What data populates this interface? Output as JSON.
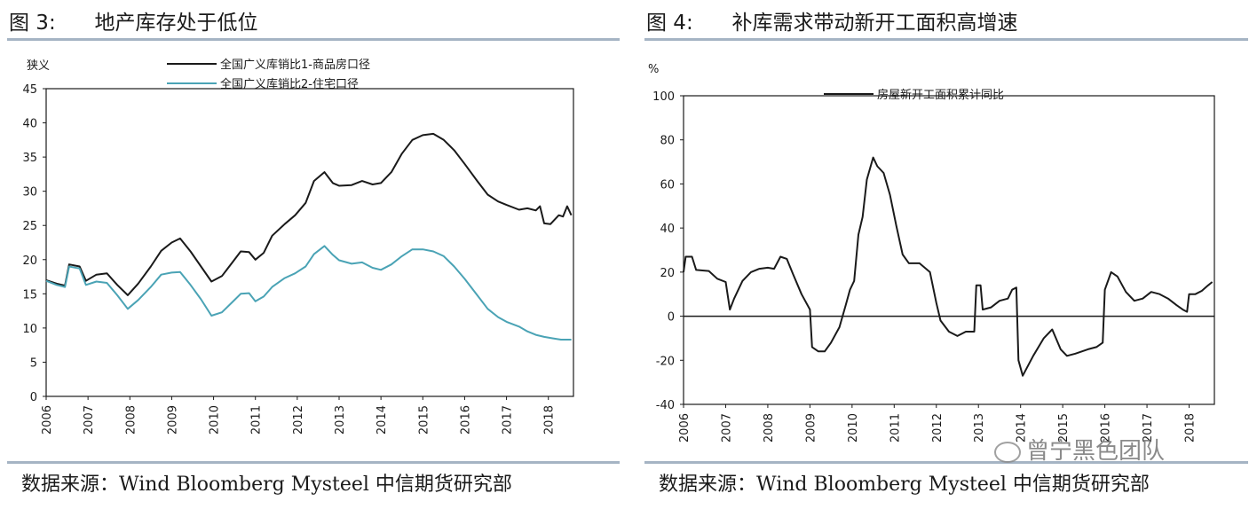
{
  "left": {
    "title": "图 3:      地产库存处于低位",
    "source": "数据来源：Wind Bloomberg Mysteel 中信期货研究部",
    "chart_data": {
      "type": "line",
      "ylabel": "狭义",
      "ylim": [
        0,
        45
      ],
      "yticks": [
        0,
        5,
        10,
        15,
        20,
        25,
        30,
        35,
        40,
        45
      ],
      "xlim": [
        2006,
        2018.6
      ],
      "xticks": [
        "2006",
        "2007",
        "2008",
        "2009",
        "2010",
        "2011",
        "2012",
        "2013",
        "2014",
        "2015",
        "2016",
        "2017",
        "2018"
      ],
      "legend_position": "top",
      "series": [
        {
          "name": "全国广义库销比1-商品房口径",
          "color": "#1a1a1a",
          "points": [
            [
              2006.0,
              17.0
            ],
            [
              2006.25,
              16.5
            ],
            [
              2006.45,
              16.2
            ],
            [
              2006.55,
              19.3
            ],
            [
              2006.8,
              19.0
            ],
            [
              2006.95,
              16.9
            ],
            [
              2007.2,
              17.8
            ],
            [
              2007.45,
              18.0
            ],
            [
              2007.7,
              16.3
            ],
            [
              2007.95,
              14.8
            ],
            [
              2008.2,
              16.5
            ],
            [
              2008.5,
              19.0
            ],
            [
              2008.75,
              21.3
            ],
            [
              2009.0,
              22.5
            ],
            [
              2009.2,
              23.1
            ],
            [
              2009.45,
              21.2
            ],
            [
              2009.7,
              19.0
            ],
            [
              2009.95,
              16.8
            ],
            [
              2010.2,
              17.6
            ],
            [
              2010.45,
              19.6
            ],
            [
              2010.65,
              21.2
            ],
            [
              2010.85,
              21.1
            ],
            [
              2011.0,
              20.0
            ],
            [
              2011.2,
              21.0
            ],
            [
              2011.4,
              23.5
            ],
            [
              2011.7,
              25.2
            ],
            [
              2011.95,
              26.5
            ],
            [
              2012.2,
              28.3
            ],
            [
              2012.4,
              31.5
            ],
            [
              2012.65,
              32.8
            ],
            [
              2012.85,
              31.2
            ],
            [
              2013.0,
              30.8
            ],
            [
              2013.3,
              30.9
            ],
            [
              2013.55,
              31.5
            ],
            [
              2013.8,
              31.0
            ],
            [
              2014.0,
              31.2
            ],
            [
              2014.25,
              32.8
            ],
            [
              2014.5,
              35.5
            ],
            [
              2014.75,
              37.5
            ],
            [
              2015.0,
              38.2
            ],
            [
              2015.25,
              38.4
            ],
            [
              2015.5,
              37.5
            ],
            [
              2015.75,
              36.0
            ],
            [
              2016.0,
              34.0
            ],
            [
              2016.3,
              31.5
            ],
            [
              2016.55,
              29.5
            ],
            [
              2016.8,
              28.5
            ],
            [
              2017.0,
              28.0
            ],
            [
              2017.3,
              27.3
            ],
            [
              2017.5,
              27.5
            ],
            [
              2017.7,
              27.2
            ],
            [
              2017.8,
              27.8
            ],
            [
              2017.9,
              25.3
            ],
            [
              2018.05,
              25.2
            ],
            [
              2018.25,
              26.5
            ],
            [
              2018.35,
              26.3
            ],
            [
              2018.45,
              27.8
            ],
            [
              2018.55,
              26.5
            ]
          ]
        },
        {
          "name": "全国广义库销比2-住宅口径",
          "color": "#4aa3b5",
          "points": [
            [
              2006.0,
              16.9
            ],
            [
              2006.25,
              16.3
            ],
            [
              2006.45,
              16.0
            ],
            [
              2006.55,
              19.0
            ],
            [
              2006.8,
              18.7
            ],
            [
              2006.95,
              16.3
            ],
            [
              2007.2,
              16.8
            ],
            [
              2007.45,
              16.6
            ],
            [
              2007.7,
              14.8
            ],
            [
              2007.95,
              12.8
            ],
            [
              2008.2,
              14.1
            ],
            [
              2008.5,
              16.0
            ],
            [
              2008.75,
              17.8
            ],
            [
              2009.0,
              18.1
            ],
            [
              2009.2,
              18.2
            ],
            [
              2009.45,
              16.3
            ],
            [
              2009.7,
              14.2
            ],
            [
              2009.95,
              11.8
            ],
            [
              2010.2,
              12.3
            ],
            [
              2010.45,
              13.8
            ],
            [
              2010.65,
              15.0
            ],
            [
              2010.85,
              15.1
            ],
            [
              2011.0,
              13.9
            ],
            [
              2011.2,
              14.6
            ],
            [
              2011.4,
              16.0
            ],
            [
              2011.7,
              17.3
            ],
            [
              2011.95,
              18.0
            ],
            [
              2012.2,
              19.0
            ],
            [
              2012.4,
              20.8
            ],
            [
              2012.65,
              22.0
            ],
            [
              2012.85,
              20.7
            ],
            [
              2013.0,
              19.9
            ],
            [
              2013.3,
              19.4
            ],
            [
              2013.55,
              19.6
            ],
            [
              2013.8,
              18.8
            ],
            [
              2014.0,
              18.5
            ],
            [
              2014.25,
              19.3
            ],
            [
              2014.5,
              20.5
            ],
            [
              2014.75,
              21.5
            ],
            [
              2015.0,
              21.5
            ],
            [
              2015.25,
              21.2
            ],
            [
              2015.5,
              20.5
            ],
            [
              2015.75,
              19.0
            ],
            [
              2016.0,
              17.2
            ],
            [
              2016.3,
              14.8
            ],
            [
              2016.55,
              12.8
            ],
            [
              2016.8,
              11.6
            ],
            [
              2017.0,
              10.9
            ],
            [
              2017.3,
              10.2
            ],
            [
              2017.5,
              9.5
            ],
            [
              2017.7,
              9.0
            ],
            [
              2017.9,
              8.7
            ],
            [
              2018.1,
              8.5
            ],
            [
              2018.3,
              8.3
            ],
            [
              2018.55,
              8.3
            ]
          ]
        }
      ]
    }
  },
  "right": {
    "title": "图 4:      补库需求带动新开工面积高增速",
    "source": "数据来源：Wind Bloomberg Mysteel 中信期货研究部",
    "chart_data": {
      "type": "line",
      "ylabel": "%",
      "ylim": [
        -40,
        100
      ],
      "yticks": [
        -40,
        -20,
        0,
        20,
        40,
        60,
        80,
        100
      ],
      "xlim": [
        2006,
        2018.6
      ],
      "xticks": [
        "2006",
        "2007",
        "2008",
        "2009",
        "2010",
        "2011",
        "2012",
        "2013",
        "2014",
        "2015",
        "2016",
        "2017",
        "2018"
      ],
      "zero_line": true,
      "legend_position": "top",
      "series": [
        {
          "name": "房屋新开工面积累计同比",
          "color": "#1a1a1a",
          "points": [
            [
              2006.0,
              20.0
            ],
            [
              2006.05,
              27.0
            ],
            [
              2006.2,
              27.0
            ],
            [
              2006.3,
              21.0
            ],
            [
              2006.6,
              20.5
            ],
            [
              2006.8,
              17.0
            ],
            [
              2007.0,
              15.5
            ],
            [
              2007.1,
              3.0
            ],
            [
              2007.2,
              8.0
            ],
            [
              2007.4,
              16.0
            ],
            [
              2007.6,
              20.0
            ],
            [
              2007.8,
              21.5
            ],
            [
              2008.0,
              22.0
            ],
            [
              2008.15,
              21.5
            ],
            [
              2008.3,
              27.0
            ],
            [
              2008.45,
              26.0
            ],
            [
              2008.6,
              19.0
            ],
            [
              2008.8,
              10.0
            ],
            [
              2009.0,
              3.0
            ],
            [
              2009.05,
              -14.0
            ],
            [
              2009.2,
              -16.0
            ],
            [
              2009.35,
              -16.0
            ],
            [
              2009.5,
              -12.0
            ],
            [
              2009.7,
              -5.0
            ],
            [
              2009.85,
              5.0
            ],
            [
              2009.95,
              12.0
            ],
            [
              2010.05,
              16.0
            ],
            [
              2010.15,
              37.0
            ],
            [
              2010.25,
              45.0
            ],
            [
              2010.35,
              62.0
            ],
            [
              2010.5,
              72.0
            ],
            [
              2010.6,
              68.0
            ],
            [
              2010.75,
              65.0
            ],
            [
              2010.9,
              55.0
            ],
            [
              2011.05,
              41.0
            ],
            [
              2011.2,
              28.0
            ],
            [
              2011.35,
              24.0
            ],
            [
              2011.6,
              24.0
            ],
            [
              2011.85,
              20.0
            ],
            [
              2012.0,
              6.0
            ],
            [
              2012.1,
              -2.0
            ],
            [
              2012.3,
              -7.0
            ],
            [
              2012.5,
              -9.0
            ],
            [
              2012.7,
              -7.0
            ],
            [
              2012.9,
              -7.0
            ],
            [
              2012.95,
              14.0
            ],
            [
              2013.05,
              14.0
            ],
            [
              2013.1,
              3.0
            ],
            [
              2013.3,
              4.0
            ],
            [
              2013.5,
              7.0
            ],
            [
              2013.7,
              8.0
            ],
            [
              2013.8,
              12.0
            ],
            [
              2013.9,
              13.0
            ],
            [
              2013.95,
              -20.0
            ],
            [
              2014.05,
              -27.0
            ],
            [
              2014.3,
              -18.0
            ],
            [
              2014.55,
              -10.0
            ],
            [
              2014.75,
              -6.0
            ],
            [
              2014.95,
              -15.0
            ],
            [
              2015.1,
              -18.0
            ],
            [
              2015.3,
              -17.0
            ],
            [
              2015.6,
              -15.0
            ],
            [
              2015.8,
              -14.0
            ],
            [
              2015.95,
              -12.0
            ],
            [
              2016.0,
              12.0
            ],
            [
              2016.15,
              20.0
            ],
            [
              2016.3,
              18.0
            ],
            [
              2016.5,
              11.0
            ],
            [
              2016.7,
              7.0
            ],
            [
              2016.9,
              8.0
            ],
            [
              2017.1,
              11.0
            ],
            [
              2017.3,
              10.0
            ],
            [
              2017.5,
              8.0
            ],
            [
              2017.7,
              5.0
            ],
            [
              2017.85,
              3.0
            ],
            [
              2017.95,
              2.0
            ],
            [
              2018.0,
              10.0
            ],
            [
              2018.15,
              10.0
            ],
            [
              2018.3,
              11.5
            ],
            [
              2018.45,
              14.0
            ],
            [
              2018.55,
              15.5
            ]
          ]
        }
      ]
    }
  },
  "watermark": "曾宁黑色团队",
  "colors": {
    "rule": "#a5b4c4",
    "axis": "#1a1a1a"
  }
}
